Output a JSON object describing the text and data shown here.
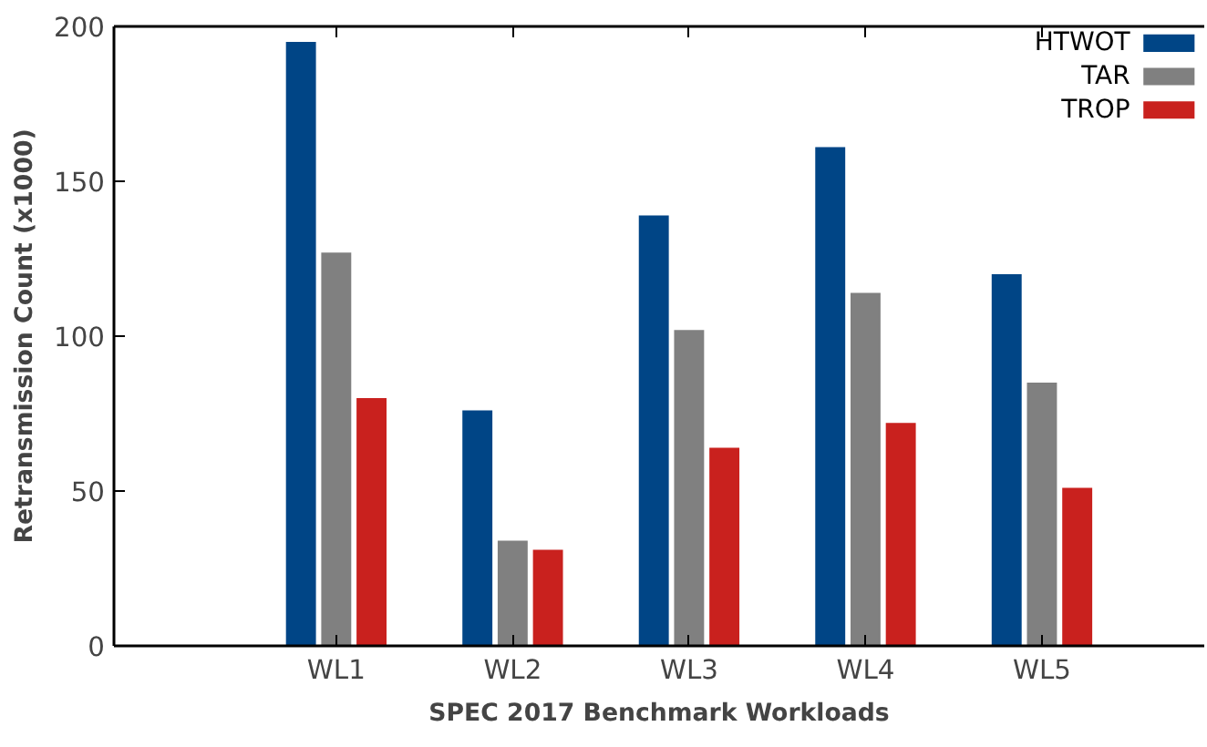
{
  "chart_data": {
    "type": "bar",
    "xlabel": "SPEC 2017 Benchmark Workloads",
    "ylabel": "Retransmission Count (x1000)",
    "categories": [
      "WL1",
      "WL2",
      "WL3",
      "WL4",
      "WL5"
    ],
    "series": [
      {
        "name": "HTWOT",
        "color": "#004586",
        "values": [
          195,
          76,
          139,
          161,
          120
        ]
      },
      {
        "name": "TAR",
        "color": "#808080",
        "values": [
          127,
          34,
          102,
          114,
          85
        ]
      },
      {
        "name": "TROP",
        "color": "#c9211e",
        "values": [
          80,
          31,
          64,
          72,
          51
        ]
      }
    ],
    "ylim": [
      0,
      200
    ],
    "yticks": [
      0,
      50,
      100,
      150,
      200
    ],
    "grid": false,
    "legend": "top right"
  }
}
